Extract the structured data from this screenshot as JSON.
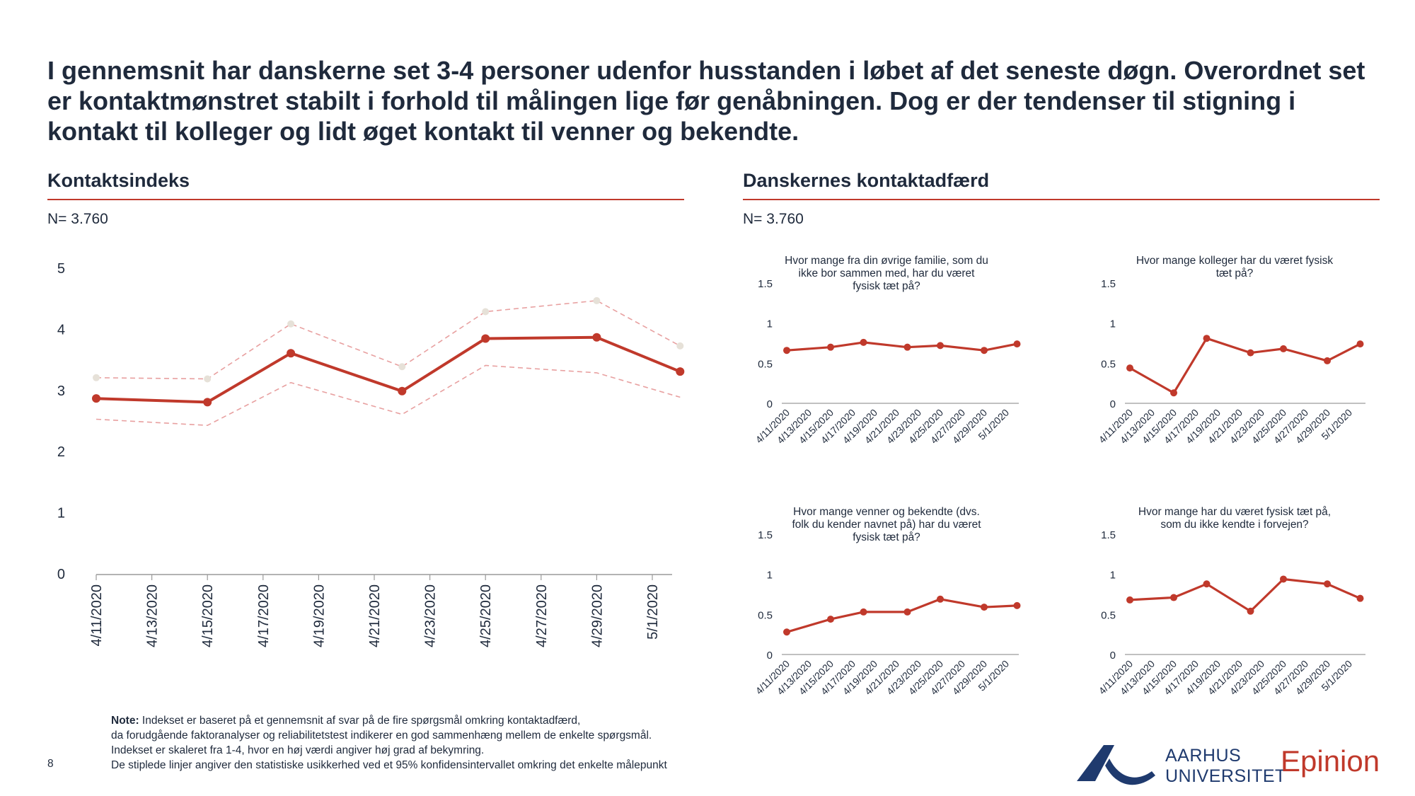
{
  "headline": "I gennemsnit har danskerne set 3-4 personer udenfor husstanden i løbet af det seneste døgn. Overordnet set er kontaktmønstret stabilt i forhold til målingen lige før genåbningen. Dog er der tendenser til stigning i kontakt til kolleger og lidt øget kontakt til venner og bekendte.",
  "left_section": {
    "title": "Kontaktsindeks",
    "n": "N= 3.760"
  },
  "right_section": {
    "title": "Danskernes kontaktadfærd",
    "n": "N= 3.760"
  },
  "colors": {
    "accent": "#c0392b",
    "ci_line": "#e8a0a0",
    "ci_marker": "#e6e1d8",
    "text": "#1f2a3c",
    "au_blue": "#1f3a6e"
  },
  "chart_data": [
    {
      "type": "line",
      "ylim": [
        0,
        5
      ],
      "yticks": [
        "0",
        "1",
        "2",
        "3",
        "4",
        "5"
      ],
      "xticks": [
        "4/11/2020",
        "4/13/2020",
        "4/15/2020",
        "4/17/2020",
        "4/19/2020",
        "4/21/2020",
        "4/23/2020",
        "4/25/2020",
        "4/27/2020",
        "4/29/2020",
        "5/1/2020"
      ],
      "series": [
        {
          "role": "mean",
          "x": [
            "4/11/2020",
            "4/15/2020",
            "4/18/2020",
            "4/22/2020",
            "4/25/2020",
            "4/29/2020",
            "5/2/2020"
          ],
          "values": [
            2.88,
            2.82,
            3.62,
            3.0,
            3.86,
            3.88,
            3.32
          ]
        },
        {
          "role": "upper",
          "x": [
            "4/11/2020",
            "4/15/2020",
            "4/18/2020",
            "4/22/2020",
            "4/25/2020",
            "4/29/2020",
            "5/2/2020"
          ],
          "values": [
            3.22,
            3.2,
            4.1,
            3.4,
            4.3,
            4.48,
            3.74
          ]
        },
        {
          "role": "lower",
          "x": [
            "4/11/2020",
            "4/15/2020",
            "4/18/2020",
            "4/22/2020",
            "4/25/2020",
            "4/29/2020",
            "5/2/2020"
          ],
          "values": [
            2.54,
            2.44,
            3.14,
            2.62,
            3.42,
            3.3,
            2.9
          ]
        }
      ]
    },
    {
      "type": "line",
      "title": "Hvor mange fra din øvrige familie, som du ikke bor sammen med, har du været fysisk tæt på?",
      "ylim": [
        0,
        1.5
      ],
      "yticks": [
        "0",
        "0.5",
        "1",
        "1.5"
      ],
      "xticks": [
        "4/11/2020",
        "4/13/2020",
        "4/15/2020",
        "4/17/2020",
        "4/19/2020",
        "4/21/2020",
        "4/23/2020",
        "4/25/2020",
        "4/27/2020",
        "4/29/2020",
        "5/1/2020"
      ],
      "series": [
        {
          "x": [
            "4/11/2020",
            "4/15/2020",
            "4/18/2020",
            "4/22/2020",
            "4/25/2020",
            "4/29/2020",
            "5/2/2020"
          ],
          "values": [
            0.66,
            0.7,
            0.76,
            0.7,
            0.72,
            0.66,
            0.74
          ]
        }
      ]
    },
    {
      "type": "line",
      "title": "Hvor mange kolleger har du været fysisk tæt på?",
      "ylim": [
        0,
        1.5
      ],
      "yticks": [
        "0",
        "0.5",
        "1",
        "1.5"
      ],
      "xticks": [
        "4/11/2020",
        "4/13/2020",
        "4/15/2020",
        "4/17/2020",
        "4/19/2020",
        "4/21/2020",
        "4/23/2020",
        "4/25/2020",
        "4/27/2020",
        "4/29/2020",
        "5/1/2020"
      ],
      "series": [
        {
          "x": [
            "4/11/2020",
            "4/15/2020",
            "4/18/2020",
            "4/22/2020",
            "4/25/2020",
            "4/29/2020",
            "5/2/2020"
          ],
          "values": [
            0.44,
            0.13,
            0.81,
            0.63,
            0.68,
            0.53,
            0.74
          ]
        }
      ]
    },
    {
      "type": "line",
      "title": "Hvor mange venner og bekendte (dvs. folk du kender navnet på) har du været fysisk tæt på?",
      "ylim": [
        0,
        1.5
      ],
      "yticks": [
        "0",
        "0.5",
        "1",
        "1.5"
      ],
      "xticks": [
        "4/11/2020",
        "4/13/2020",
        "4/15/2020",
        "4/17/2020",
        "4/19/2020",
        "4/21/2020",
        "4/23/2020",
        "4/25/2020",
        "4/27/2020",
        "4/29/2020",
        "5/1/2020"
      ],
      "series": [
        {
          "x": [
            "4/11/2020",
            "4/15/2020",
            "4/18/2020",
            "4/22/2020",
            "4/25/2020",
            "4/29/2020",
            "5/2/2020"
          ],
          "values": [
            0.28,
            0.44,
            0.53,
            0.53,
            0.69,
            0.59,
            0.61
          ]
        }
      ]
    },
    {
      "type": "line",
      "title": "Hvor mange har du været fysisk tæt på, som du ikke kendte i forvejen?",
      "ylim": [
        0,
        1.5
      ],
      "yticks": [
        "0",
        "0.5",
        "1",
        "1.5"
      ],
      "xticks": [
        "4/11/2020",
        "4/13/2020",
        "4/15/2020",
        "4/17/2020",
        "4/19/2020",
        "4/21/2020",
        "4/23/2020",
        "4/25/2020",
        "4/27/2020",
        "4/29/2020",
        "5/1/2020"
      ],
      "series": [
        {
          "x": [
            "4/11/2020",
            "4/15/2020",
            "4/18/2020",
            "4/22/2020",
            "4/25/2020",
            "4/29/2020",
            "5/2/2020"
          ],
          "values": [
            0.68,
            0.71,
            0.88,
            0.54,
            0.94,
            0.88,
            0.7
          ]
        }
      ]
    }
  ],
  "note": {
    "label": "Note:",
    "line1": " Indekset er baseret på et gennemsnit af svar på de fire spørgsmål omkring kontaktadfærd,",
    "line2": "da forudgående faktoranalyser og reliabilitetstest indikerer en god sammenhæng mellem de enkelte spørgsmål.",
    "line3": "Indekset er skaleret fra 1-4, hvor en høj værdi angiver høj grad af bekymring.",
    "line4": "De stiplede linjer angiver den statistiske usikkerhed ved et 95% konfidensintervallet omkring det enkelte målepunkt"
  },
  "page_number": "8",
  "logos": {
    "au_line1": "AARHUS",
    "au_line2": "UNIVERSITET",
    "epinion": "Epinion"
  }
}
